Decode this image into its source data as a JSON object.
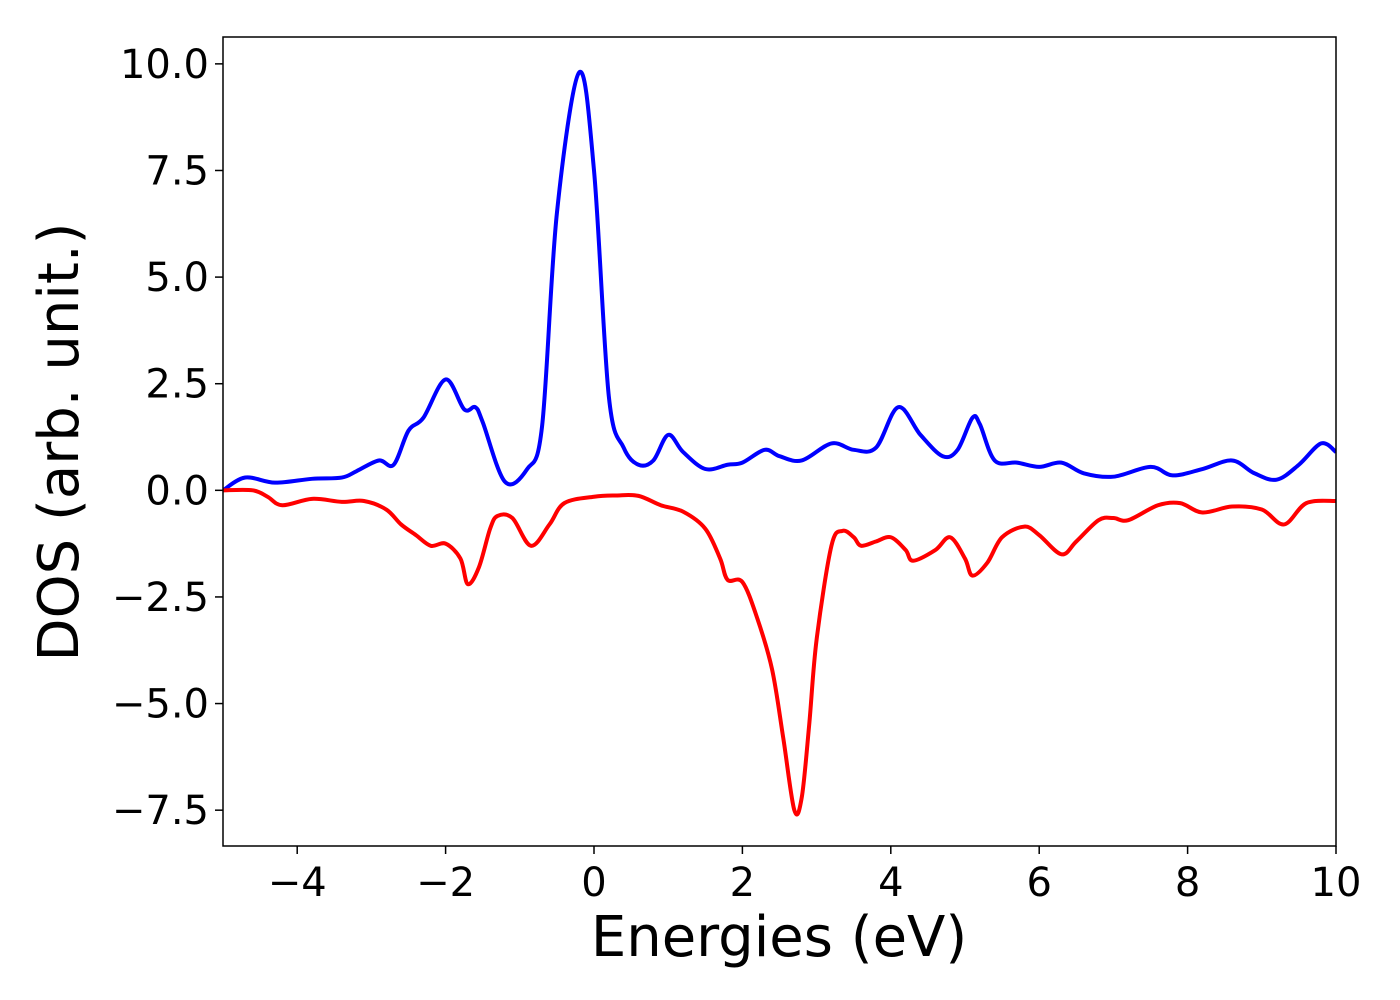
{
  "chart_data": {
    "type": "line",
    "xlabel": "Energies (eV)",
    "ylabel": "DOS (arb. unit.)",
    "xlim": [
      -5,
      10
    ],
    "xticks": [
      {
        "value": -4,
        "label": "−4"
      },
      {
        "value": -2,
        "label": "−2"
      },
      0,
      2,
      4,
      6,
      8,
      10
    ],
    "ylim": [
      -8.34,
      10.63
    ],
    "yticks": [
      {
        "value": -7.5,
        "label": "−7.5"
      },
      {
        "value": -5,
        "label": "−5.0"
      },
      {
        "value": -2.5,
        "label": "−2.5"
      },
      {
        "value": 0,
        "label": "0.0"
      },
      {
        "value": 2.5,
        "label": "2.5"
      },
      {
        "value": 5,
        "label": "5.0"
      },
      {
        "value": 7.5,
        "label": "7.5"
      },
      {
        "value": 10,
        "label": "10.0"
      }
    ],
    "grid": false,
    "series": [
      {
        "color": "#0000ff",
        "x": [
          -5,
          -4.7,
          -4.3,
          -3.8,
          -3.4,
          -3.2,
          -2.9,
          -2.7,
          -2.5,
          -2.3,
          -2.0,
          -1.75,
          -1.6,
          -1.5,
          -1.2,
          -0.9,
          -0.7,
          -0.5,
          -0.2,
          0,
          0.2,
          0.4,
          0.6,
          0.8,
          1.0,
          1.2,
          1.5,
          1.8,
          2.0,
          2.3,
          2.5,
          2.8,
          3.2,
          3.5,
          3.8,
          4.1,
          4.4,
          4.7,
          4.9,
          5.1,
          5.2,
          5.4,
          5.7,
          6.0,
          6.3,
          6.6,
          7.0,
          7.5,
          7.8,
          8.2,
          8.6,
          8.9,
          9.2,
          9.5,
          9.8,
          10
        ],
        "values": [
          0,
          0.3,
          0.18,
          0.27,
          0.3,
          0.45,
          0.7,
          0.6,
          1.4,
          1.7,
          2.6,
          1.9,
          1.95,
          1.6,
          0.2,
          0.5,
          1.5,
          6.5,
          9.8,
          7.5,
          2.2,
          1.0,
          0.6,
          0.7,
          1.3,
          0.9,
          0.5,
          0.6,
          0.65,
          0.95,
          0.8,
          0.7,
          1.1,
          0.95,
          1.0,
          1.95,
          1.3,
          0.8,
          0.95,
          1.7,
          1.55,
          0.7,
          0.65,
          0.55,
          0.65,
          0.4,
          0.32,
          0.55,
          0.35,
          0.5,
          0.7,
          0.4,
          0.25,
          0.6,
          1.1,
          0.9
        ]
      },
      {
        "color": "#ff0000",
        "x": [
          -5,
          -4.6,
          -4.4,
          -4.2,
          -3.8,
          -3.4,
          -3.1,
          -2.8,
          -2.6,
          -2.4,
          -2.2,
          -2.0,
          -1.8,
          -1.7,
          -1.55,
          -1.4,
          -1.3,
          -1.1,
          -0.85,
          -0.6,
          -0.4,
          0,
          0.3,
          0.6,
          0.9,
          1.2,
          1.5,
          1.7,
          1.8,
          2.0,
          2.2,
          2.4,
          2.55,
          2.7,
          2.8,
          2.9,
          3.0,
          3.2,
          3.35,
          3.5,
          3.6,
          3.8,
          4.0,
          4.2,
          4.3,
          4.6,
          4.8,
          5.0,
          5.1,
          5.3,
          5.5,
          5.8,
          6.0,
          6.3,
          6.5,
          6.8,
          7.0,
          7.2,
          7.6,
          7.9,
          8.2,
          8.6,
          9.0,
          9.3,
          9.6,
          10
        ],
        "values": [
          0,
          0,
          -0.15,
          -0.35,
          -0.2,
          -0.27,
          -0.25,
          -0.45,
          -0.8,
          -1.05,
          -1.3,
          -1.25,
          -1.6,
          -2.2,
          -1.8,
          -0.9,
          -0.6,
          -0.65,
          -1.3,
          -0.8,
          -0.3,
          -0.15,
          -0.12,
          -0.13,
          -0.35,
          -0.5,
          -0.9,
          -1.6,
          -2.1,
          -2.15,
          -3.0,
          -4.2,
          -5.8,
          -7.5,
          -7.2,
          -5.5,
          -3.5,
          -1.3,
          -0.95,
          -1.1,
          -1.3,
          -1.2,
          -1.1,
          -1.4,
          -1.65,
          -1.4,
          -1.1,
          -1.6,
          -2.0,
          -1.7,
          -1.1,
          -0.85,
          -1.05,
          -1.5,
          -1.2,
          -0.7,
          -0.65,
          -0.7,
          -0.35,
          -0.3,
          -0.52,
          -0.38,
          -0.45,
          -0.8,
          -0.3,
          -0.25
        ]
      }
    ]
  }
}
